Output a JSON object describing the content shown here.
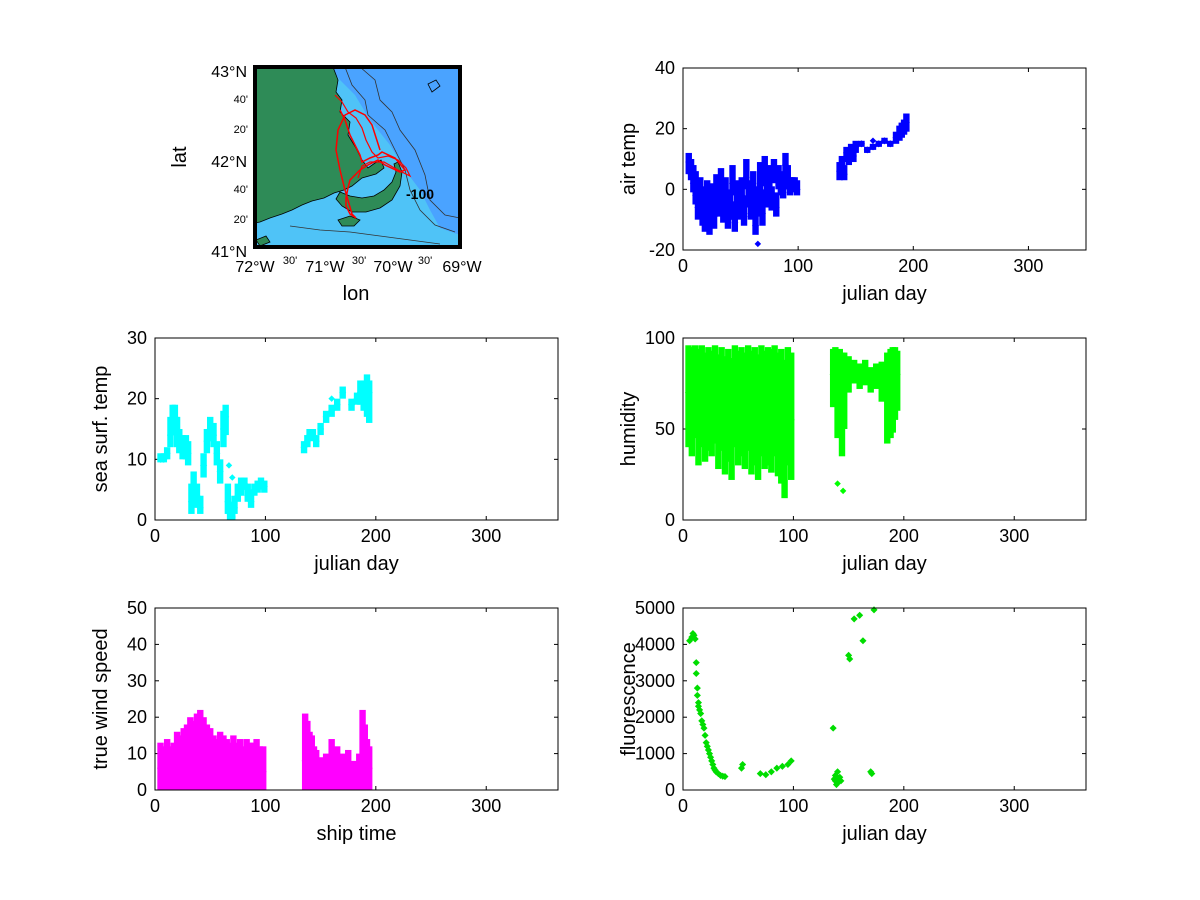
{
  "map": {
    "lat_labels": [
      "43°N",
      "42°N",
      "41°N"
    ],
    "lat_minor": [
      "40'",
      "20'",
      "40'",
      "20'"
    ],
    "lon_labels": [
      "72°W",
      "71°W",
      "70°W",
      "69°W"
    ],
    "lon_minor": [
      "30'",
      "30'",
      "30'"
    ],
    "xlabel": "lon",
    "ylabel": "lat",
    "contour_label": "-100",
    "colors": {
      "land": "#2e8b57",
      "shallow": "#4fc3f7",
      "deep": "#4aa3ff",
      "track": "#ff0000",
      "frame": "#000000"
    }
  },
  "chart_data": [
    {
      "id": "air-temp",
      "type": "scatter",
      "xlabel": "julian day",
      "ylabel": "air temp",
      "xlim": [
        0,
        350
      ],
      "ylim": [
        -20,
        40
      ],
      "xticks": [
        0,
        100,
        200,
        300
      ],
      "yticks": [
        -20,
        0,
        20,
        40
      ],
      "color": "#0000ff",
      "grid": false,
      "x": [
        5,
        7,
        9,
        11,
        13,
        15,
        17,
        19,
        21,
        23,
        25,
        27,
        29,
        31,
        33,
        35,
        37,
        39,
        41,
        43,
        45,
        47,
        49,
        51,
        53,
        55,
        57,
        59,
        61,
        63,
        65,
        67,
        69,
        71,
        73,
        75,
        77,
        79,
        81,
        83,
        85,
        87,
        89,
        91,
        93,
        95,
        97,
        99,
        136,
        138,
        140,
        142,
        144,
        146,
        148,
        150,
        155,
        160,
        165,
        170,
        175,
        180,
        185,
        188,
        190,
        192,
        194
      ],
      "y": [
        9,
        5,
        2,
        -2,
        -6,
        -3,
        -8,
        -10,
        -4,
        -12,
        -6,
        -9,
        -2,
        -5,
        1,
        -8,
        -3,
        -10,
        -7,
        2,
        -11,
        -4,
        -6,
        -2,
        -9,
        4,
        -3,
        -8,
        -1,
        -12,
        -6,
        2,
        -8,
        5,
        -2,
        4,
        -4,
        6,
        -6,
        3,
        1,
        -1,
        8,
        3,
        0,
        2,
        1,
        0,
        6,
        8,
        5,
        12,
        10,
        13,
        11,
        14,
        15,
        13,
        14,
        15,
        16,
        15,
        17,
        18,
        19,
        20,
        22
      ],
      "ymin": [
        5,
        3,
        -1,
        -5,
        -10,
        -6,
        -12,
        -14,
        -8,
        -15,
        -10,
        -13,
        -6,
        -9,
        -3,
        -11,
        -6,
        -13,
        -10,
        -2,
        -14,
        -8,
        -10,
        -5,
        -12,
        0,
        -6,
        -10,
        -5,
        -15,
        -9,
        -2,
        -12,
        1,
        -6,
        0,
        -7,
        2,
        -9,
        0,
        -2,
        -3,
        4,
        0,
        -2,
        0,
        -1,
        -2,
        3,
        5,
        3,
        9,
        8,
        11,
        9,
        12,
        14,
        12,
        13,
        14,
        15,
        14,
        15,
        16,
        17,
        18,
        19
      ],
      "ymax": [
        12,
        10,
        8,
        6,
        3,
        4,
        1,
        -1,
        3,
        -4,
        2,
        -3,
        5,
        2,
        7,
        -2,
        4,
        -3,
        0,
        8,
        -4,
        3,
        2,
        4,
        -2,
        10,
        3,
        -1,
        6,
        -5,
        1,
        9,
        0,
        11,
        3,
        8,
        1,
        10,
        -1,
        8,
        6,
        5,
        12,
        8,
        4,
        4,
        4,
        3,
        9,
        11,
        8,
        14,
        12,
        15,
        13,
        16,
        16,
        14,
        15,
        16,
        17,
        16,
        19,
        21,
        22,
        23,
        25
      ],
      "outliers": [
        [
          65,
          -18
        ],
        [
          165,
          16
        ]
      ]
    },
    {
      "id": "sea-surf-temp",
      "type": "scatter",
      "xlabel": "julian day",
      "ylabel": "sea surf. temp",
      "xlim": [
        0,
        365
      ],
      "ylim": [
        0,
        30
      ],
      "xticks": [
        0,
        100,
        200,
        300
      ],
      "yticks": [
        0,
        10,
        20,
        30
      ],
      "color": "#00ffff",
      "grid": false,
      "x": [
        5,
        8,
        11,
        14,
        16,
        18,
        20,
        22,
        25,
        28,
        30,
        33,
        35,
        38,
        41,
        44,
        47,
        50,
        53,
        56,
        59,
        62,
        64,
        66,
        68,
        70,
        72,
        75,
        78,
        81,
        84,
        87,
        90,
        93,
        96,
        99,
        135,
        138,
        140,
        143,
        146,
        150,
        155,
        160,
        165,
        170,
        178,
        183,
        186,
        189,
        192,
        194
      ],
      "y": [
        10,
        10,
        11,
        14,
        16,
        17,
        14,
        13,
        12,
        12,
        11,
        3,
        5,
        4,
        2,
        9,
        13,
        15,
        14,
        11,
        8,
        15,
        17,
        3,
        1,
        0.5,
        2,
        4,
        5,
        6,
        4,
        3,
        5,
        5.5,
        6,
        5.5,
        12,
        13,
        14,
        14,
        13,
        15,
        17,
        18,
        19,
        21,
        19,
        20,
        21,
        21,
        22,
        21
      ],
      "ymin": [
        9.5,
        9.5,
        10,
        12,
        14,
        15,
        12,
        11,
        10,
        10,
        9,
        1,
        3,
        2,
        1,
        7,
        11,
        13,
        12,
        9,
        6,
        12,
        14,
        1,
        0,
        0,
        1,
        3,
        4,
        5,
        3,
        2,
        4,
        4.5,
        5,
        4.5,
        11,
        12,
        13,
        13,
        12,
        14,
        16,
        17,
        18,
        20,
        18,
        19,
        19,
        18,
        17,
        16
      ],
      "ymax": [
        11,
        11,
        12,
        17,
        19,
        19,
        17,
        15,
        14,
        14,
        13,
        6,
        8,
        6,
        4,
        11,
        15,
        17,
        16,
        13,
        10,
        18,
        19,
        6,
        3,
        2,
        4,
        6,
        7,
        7,
        6,
        5,
        6,
        6.5,
        7,
        6.5,
        13,
        14,
        15,
        15,
        14,
        16,
        18,
        19,
        20,
        22,
        20,
        21,
        23,
        23,
        24,
        23
      ],
      "outliers": [
        [
          67,
          9
        ],
        [
          70,
          7
        ],
        [
          160,
          20
        ]
      ]
    },
    {
      "id": "humidity",
      "type": "scatter",
      "xlabel": "julian day",
      "ylabel": "humidity",
      "xlim": [
        0,
        365
      ],
      "ylim": [
        0,
        100
      ],
      "xticks": [
        0,
        100,
        200,
        300
      ],
      "yticks": [
        0,
        50,
        100
      ],
      "color": "#00ff00",
      "grid": false,
      "x": [
        5,
        8,
        11,
        14,
        17,
        20,
        23,
        26,
        29,
        32,
        35,
        38,
        41,
        44,
        47,
        50,
        53,
        56,
        59,
        62,
        65,
        68,
        71,
        74,
        77,
        80,
        83,
        86,
        89,
        92,
        95,
        98,
        136,
        138,
        140,
        142,
        144,
        146,
        150,
        155,
        160,
        165,
        170,
        175,
        180,
        185,
        188,
        190,
        192,
        194
      ],
      "y": [
        70,
        65,
        75,
        60,
        70,
        55,
        65,
        60,
        70,
        55,
        65,
        50,
        60,
        55,
        70,
        60,
        65,
        55,
        70,
        60,
        65,
        55,
        70,
        60,
        65,
        60,
        70,
        55,
        60,
        50,
        65,
        55,
        80,
        85,
        75,
        80,
        70,
        78,
        82,
        80,
        78,
        80,
        76,
        80,
        78,
        75,
        70,
        72,
        75,
        80
      ],
      "ymin": [
        40,
        35,
        45,
        30,
        40,
        32,
        38,
        35,
        42,
        28,
        38,
        25,
        32,
        22,
        40,
        30,
        35,
        28,
        38,
        25,
        30,
        22,
        35,
        28,
        30,
        26,
        35,
        24,
        20,
        12,
        30,
        22,
        62,
        65,
        45,
        60,
        35,
        50,
        70,
        75,
        72,
        74,
        70,
        72,
        65,
        42,
        45,
        48,
        55,
        60
      ],
      "ymax": [
        96,
        95,
        96,
        94,
        96,
        92,
        95,
        93,
        96,
        91,
        95,
        90,
        94,
        89,
        96,
        93,
        95,
        92,
        96,
        93,
        95,
        91,
        96,
        93,
        95,
        94,
        96,
        92,
        94,
        88,
        95,
        92,
        94,
        95,
        93,
        94,
        92,
        92,
        90,
        88,
        86,
        88,
        84,
        86,
        87,
        92,
        94,
        95,
        95,
        93
      ],
      "outliers": [
        [
          140,
          20
        ],
        [
          145,
          16
        ]
      ]
    },
    {
      "id": "true-wind-speed",
      "type": "scatter",
      "xlabel": "ship time",
      "ylabel": "true wind speed",
      "xlim": [
        0,
        365
      ],
      "ylim": [
        0,
        50
      ],
      "xticks": [
        0,
        100,
        200,
        300
      ],
      "yticks": [
        0,
        10,
        20,
        30,
        40,
        50
      ],
      "color": "#ff00ff",
      "grid": false,
      "x": [
        5,
        8,
        11,
        14,
        17,
        20,
        23,
        26,
        29,
        32,
        35,
        38,
        41,
        44,
        47,
        50,
        53,
        56,
        59,
        62,
        65,
        68,
        71,
        74,
        77,
        80,
        83,
        86,
        89,
        92,
        95,
        98,
        136,
        138,
        140,
        142,
        144,
        146,
        150,
        155,
        160,
        165,
        170,
        175,
        180,
        185,
        188,
        190,
        192,
        194
      ],
      "y": [
        6,
        5,
        7,
        5,
        6,
        8,
        7,
        9,
        8,
        10,
        9,
        10,
        12,
        11,
        9,
        8,
        7,
        6,
        8,
        7,
        6,
        5,
        7,
        6,
        6,
        5,
        6,
        5,
        5,
        6,
        5,
        5,
        8,
        10,
        7,
        9,
        6,
        5,
        4,
        5,
        6,
        5,
        4,
        5,
        3,
        4,
        6,
        5,
        8,
        6
      ],
      "ymin": [
        0,
        0,
        0,
        0,
        0,
        0,
        0,
        0,
        0,
        0,
        0,
        0,
        0,
        0,
        0,
        0,
        0,
        0,
        0,
        0,
        0,
        0,
        0,
        0,
        0,
        0,
        0,
        0,
        0,
        0,
        0,
        0,
        0,
        0,
        0,
        0,
        0,
        0,
        0,
        0,
        0,
        0,
        0,
        0,
        0,
        0,
        0,
        0,
        0,
        0
      ],
      "ymax": [
        13,
        12,
        14,
        12,
        13,
        16,
        15,
        17,
        18,
        20,
        19,
        21,
        22,
        20,
        18,
        17,
        15,
        14,
        16,
        15,
        14,
        13,
        15,
        13,
        14,
        12,
        14,
        13,
        13,
        14,
        12,
        12,
        21,
        19,
        16,
        15,
        12,
        11,
        9,
        10,
        14,
        12,
        10,
        11,
        8,
        10,
        22,
        18,
        14,
        12
      ],
      "outliers": []
    },
    {
      "id": "fluorescence",
      "type": "scatter",
      "xlabel": "julian day",
      "ylabel": "fluorescence",
      "xlim": [
        0,
        365
      ],
      "ylim": [
        0,
        5000
      ],
      "xticks": [
        0,
        100,
        200,
        300
      ],
      "yticks": [
        0,
        1000,
        2000,
        3000,
        4000,
        5000
      ],
      "color": "#00dd00",
      "grid": false,
      "x": [
        6,
        8,
        9,
        10,
        11,
        12,
        12,
        13,
        13,
        14,
        14,
        15,
        16,
        17,
        18,
        19,
        20,
        21,
        22,
        23,
        24,
        25,
        26,
        27,
        28,
        29,
        30,
        32,
        34,
        36,
        38,
        53,
        54,
        70,
        75,
        80,
        85,
        90,
        95,
        98,
        136,
        137,
        138,
        138,
        139,
        140,
        140,
        141,
        142,
        143,
        150,
        151,
        155,
        160,
        163,
        170,
        171,
        173
      ],
      "y": [
        4100,
        4200,
        4300,
        4250,
        4150,
        3500,
        3200,
        2800,
        2600,
        2400,
        2300,
        2200,
        2100,
        1900,
        1800,
        1700,
        1500,
        1300,
        1200,
        1100,
        1000,
        900,
        800,
        700,
        600,
        550,
        500,
        450,
        400,
        380,
        370,
        600,
        700,
        450,
        420,
        500,
        600,
        650,
        700,
        800,
        1700,
        300,
        250,
        400,
        150,
        200,
        500,
        300,
        350,
        250,
        3700,
        3600,
        4700,
        4800,
        4100,
        500,
        450,
        4950
      ],
      "ymin": null,
      "ymax": null,
      "outliers": []
    }
  ]
}
